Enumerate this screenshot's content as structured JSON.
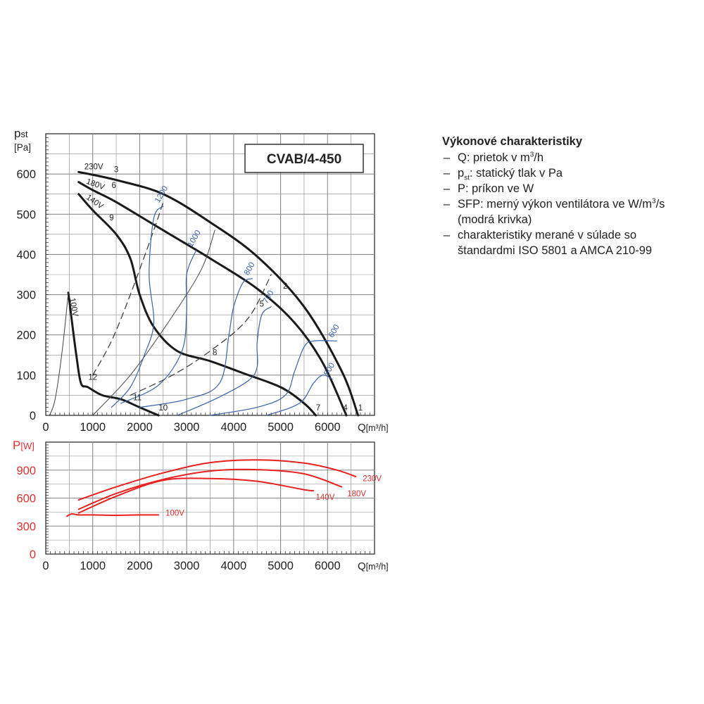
{
  "chart_data": [
    {
      "type": "line",
      "title": "CVAB/4-450",
      "ylabel_main": "p",
      "ylabel_sub": "st",
      "yunit": "[Pa]",
      "xlabel": "Q",
      "xunit": "[m³/h]",
      "xlim": [
        0,
        7000
      ],
      "ylim": [
        0,
        700
      ],
      "xticks": [
        0,
        1000,
        2000,
        3000,
        4000,
        5000,
        6000
      ],
      "yticks": [
        0,
        100,
        200,
        300,
        400,
        500,
        600
      ],
      "grid": true,
      "colors": {
        "fan": "#1a1a1a",
        "sfp": "#3a62a8",
        "grid": "#999999",
        "system": "#444444"
      },
      "series": [
        {
          "name": "230V",
          "kind": "fan",
          "width": 3,
          "points": [
            [
              700,
              605
            ],
            [
              1500,
              585
            ],
            [
              2500,
              550
            ],
            [
              3500,
              480
            ],
            [
              4500,
              395
            ],
            [
              5500,
              270
            ],
            [
              6300,
              110
            ],
            [
              6650,
              0
            ]
          ]
        },
        {
          "name": "180V",
          "kind": "fan",
          "width": 3,
          "points": [
            [
              700,
              580
            ],
            [
              1000,
              560
            ],
            [
              1500,
              530
            ],
            [
              2500,
              460
            ],
            [
              3500,
              390
            ],
            [
              4500,
              315
            ],
            [
              5300,
              230
            ],
            [
              5900,
              130
            ],
            [
              6400,
              0
            ]
          ]
        },
        {
          "name": "140V",
          "kind": "fan",
          "width": 3,
          "points": [
            [
              700,
              550
            ],
            [
              1000,
              510
            ],
            [
              1500,
              450
            ],
            [
              1800,
              390
            ],
            [
              2000,
              300
            ],
            [
              2300,
              220
            ],
            [
              2800,
              160
            ],
            [
              3500,
              135
            ],
            [
              4200,
              105
            ],
            [
              5000,
              70
            ],
            [
              5500,
              30
            ],
            [
              5750,
              0
            ]
          ]
        },
        {
          "name": "100V",
          "kind": "fan",
          "width": 3,
          "points": [
            [
              480,
              305
            ],
            [
              550,
              240
            ],
            [
              650,
              150
            ],
            [
              750,
              80
            ],
            [
              900,
              70
            ],
            [
              1200,
              50
            ],
            [
              1600,
              40
            ],
            [
              2000,
              20
            ],
            [
              2400,
              0
            ]
          ]
        },
        {
          "name": "",
          "kind": "system",
          "width": 1,
          "points": [
            [
              80,
              0
            ],
            [
              200,
              40
            ],
            [
              350,
              160
            ],
            [
              480,
              305
            ]
          ]
        },
        {
          "name": "",
          "kind": "system",
          "width": 1,
          "points": [
            [
              1000,
              0
            ],
            [
              1800,
              100
            ],
            [
              2600,
              230
            ],
            [
              3300,
              360
            ],
            [
              3600,
              460
            ]
          ]
        },
        {
          "name": "",
          "kind": "dashed",
          "width": 1.2,
          "points": [
            [
              1000,
              100
            ],
            [
              1400,
              185
            ],
            [
              1800,
              300
            ],
            [
              2300,
              460
            ],
            [
              2500,
              530
            ]
          ]
        },
        {
          "name": "",
          "kind": "dashed",
          "width": 1.2,
          "points": [
            [
              1800,
              50
            ],
            [
              2700,
              100
            ],
            [
              3500,
              160
            ],
            [
              4300,
              240
            ],
            [
              4800,
              350
            ]
          ]
        },
        {
          "name": "1200",
          "kind": "sfp",
          "width": 1.2,
          "points": [
            [
              1400,
              20
            ],
            [
              1800,
              70
            ],
            [
              2100,
              150
            ],
            [
              2300,
              230
            ],
            [
              2200,
              350
            ],
            [
              2300,
              490
            ],
            [
              2500,
              520
            ]
          ]
        },
        {
          "name": "1000",
          "kind": "sfp",
          "width": 1.2,
          "points": [
            [
              1600,
              30
            ],
            [
              2400,
              75
            ],
            [
              2900,
              160
            ],
            [
              3000,
              260
            ],
            [
              3000,
              350
            ],
            [
              3200,
              410
            ]
          ]
        },
        {
          "name": "800",
          "kind": "sfp",
          "width": 1.2,
          "points": [
            [
              2000,
              20
            ],
            [
              3000,
              40
            ],
            [
              3700,
              80
            ],
            [
              3900,
              200
            ],
            [
              4000,
              270
            ],
            [
              4200,
              330
            ],
            [
              4400,
              340
            ]
          ]
        },
        {
          "name": "700",
          "kind": "sfp",
          "width": 1.2,
          "points": [
            [
              2800,
              0
            ],
            [
              3600,
              40
            ],
            [
              4300,
              85
            ],
            [
              4500,
              120
            ],
            [
              4500,
              180
            ],
            [
              4600,
              250
            ],
            [
              4800,
              270
            ]
          ]
        },
        {
          "name": "600",
          "kind": "sfp",
          "width": 1.2,
          "points": [
            [
              3500,
              0
            ],
            [
              4500,
              20
            ],
            [
              5100,
              50
            ],
            [
              5300,
              110
            ],
            [
              5500,
              170
            ],
            [
              5700,
              185
            ],
            [
              6200,
              185
            ]
          ]
        },
        {
          "name": "500",
          "kind": "sfp",
          "width": 1.2,
          "points": [
            [
              4700,
              0
            ],
            [
              5400,
              30
            ],
            [
              5700,
              80
            ],
            [
              5900,
              100
            ],
            [
              6100,
              90
            ]
          ]
        }
      ],
      "point_labels": [
        {
          "text": "1",
          "x": 6700,
          "y": 12
        },
        {
          "text": "2",
          "x": 5100,
          "y": 315
        },
        {
          "text": "3",
          "x": 1500,
          "y": 605
        },
        {
          "text": "4",
          "x": 6380,
          "y": 12
        },
        {
          "text": "5",
          "x": 4600,
          "y": 270
        },
        {
          "text": "6",
          "x": 1450,
          "y": 565
        },
        {
          "text": "7",
          "x": 5800,
          "y": 12
        },
        {
          "text": "8",
          "x": 3600,
          "y": 150
        },
        {
          "text": "9",
          "x": 1400,
          "y": 485
        },
        {
          "text": "10",
          "x": 2500,
          "y": 12
        },
        {
          "text": "11",
          "x": 1950,
          "y": 38
        },
        {
          "text": "12",
          "x": 1000,
          "y": 88
        }
      ]
    },
    {
      "type": "line",
      "ylabel": "P",
      "yunit": "[W]",
      "xlabel": "Q",
      "xunit": "[m³/h]",
      "xlim": [
        0,
        7000
      ],
      "ylim": [
        0,
        1200
      ],
      "xticks": [
        0,
        1000,
        2000,
        3000,
        4000,
        5000,
        6000
      ],
      "yticks": [
        0,
        300,
        600,
        900
      ],
      "grid": true,
      "colors": {
        "power": "#e82020",
        "label": "#e03030"
      },
      "series": [
        {
          "name": "230V",
          "points": [
            [
              700,
              580
            ],
            [
              1500,
              720
            ],
            [
              2500,
              870
            ],
            [
              3500,
              980
            ],
            [
              4500,
              1010
            ],
            [
              5500,
              975
            ],
            [
              6200,
              900
            ],
            [
              6600,
              830
            ]
          ]
        },
        {
          "name": "180V",
          "points": [
            [
              700,
              480
            ],
            [
              1500,
              650
            ],
            [
              2500,
              800
            ],
            [
              3500,
              890
            ],
            [
              4500,
              905
            ],
            [
              5500,
              860
            ],
            [
              6300,
              720
            ]
          ]
        },
        {
          "name": "140V",
          "points": [
            [
              700,
              440
            ],
            [
              1500,
              620
            ],
            [
              2500,
              790
            ],
            [
              3500,
              810
            ],
            [
              4500,
              780
            ],
            [
              5500,
              690
            ],
            [
              5700,
              680
            ]
          ]
        },
        {
          "name": "100V",
          "points": [
            [
              450,
              405
            ],
            [
              550,
              430
            ],
            [
              700,
              420
            ],
            [
              1000,
              420
            ],
            [
              1500,
              415
            ],
            [
              2000,
              420
            ],
            [
              2400,
              420
            ]
          ]
        }
      ],
      "curve_labels": [
        {
          "text": "230V",
          "x": 6950,
          "y": 780
        },
        {
          "text": "180V",
          "x": 6620,
          "y": 620
        },
        {
          "text": "140V",
          "x": 5950,
          "y": 580
        },
        {
          "text": "100V",
          "x": 2750,
          "y": 410
        }
      ]
    }
  ],
  "legend": {
    "title": "Výkonové charakteristiky",
    "items": [
      {
        "pre": "Q: prietok v m",
        "sup": "3",
        "post": "/h"
      },
      {
        "pre": "p",
        "sub": "st",
        "post": ": statický tlak v Pa"
      },
      {
        "pre": "P: príkon ve W"
      },
      {
        "pre": "SFP:  merný výkon ventilátora ve W/m",
        "sup": "3",
        "post": "/s"
      },
      {
        "pre": "charakteristiky merané v súlade so štandardmi ISO 5801 a AMCA 210-99"
      }
    ],
    "sfp_note": "(modrá krivka)"
  }
}
